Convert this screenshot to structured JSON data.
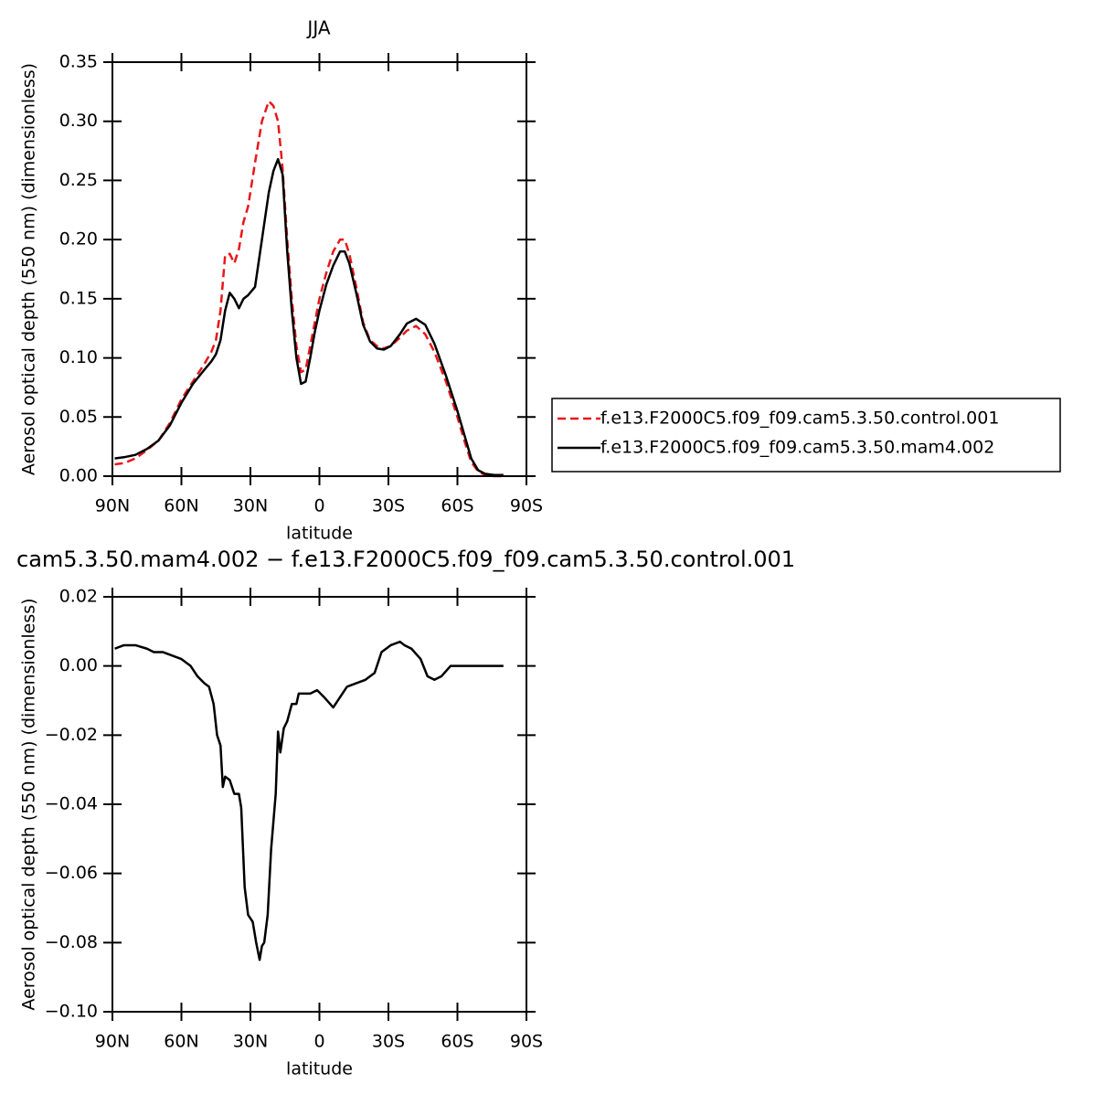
{
  "chart_data": [
    {
      "type": "line",
      "title": "JJA",
      "x_label": "latitude",
      "y_label": "Aerosol optical depth (550 nm) (dimensionless)",
      "x": [
        89,
        85,
        80,
        75,
        70,
        65,
        60,
        55,
        50,
        47,
        45,
        43,
        41,
        39,
        37,
        35,
        33,
        31,
        28,
        25,
        22,
        20,
        18,
        16,
        14,
        12,
        10,
        8,
        6,
        4,
        2,
        0,
        -3,
        -6,
        -9,
        -11,
        -13,
        -16,
        -19,
        -22,
        -25,
        -28,
        -31,
        -35,
        -38,
        -42,
        -46,
        -50,
        -55,
        -60,
        -63,
        -66,
        -69,
        -72,
        -76,
        -80
      ],
      "series": [
        {
          "name": "f.e13.F2000C5.f09_f09.cam5.3.50.control.001",
          "color": "#e8171b",
          "line_style": "dashed",
          "values": [
            0.01,
            0.011,
            0.015,
            0.022,
            0.03,
            0.045,
            0.065,
            0.08,
            0.095,
            0.105,
            0.115,
            0.14,
            0.187,
            0.188,
            0.18,
            0.192,
            0.215,
            0.228,
            0.265,
            0.3,
            0.317,
            0.313,
            0.3,
            0.26,
            0.2,
            0.15,
            0.11,
            0.088,
            0.09,
            0.11,
            0.13,
            0.15,
            0.172,
            0.19,
            0.2,
            0.2,
            0.188,
            0.16,
            0.13,
            0.115,
            0.11,
            0.108,
            0.11,
            0.117,
            0.123,
            0.127,
            0.12,
            0.105,
            0.08,
            0.05,
            0.03,
            0.012,
            0.004,
            0.001,
            0.0,
            0.0
          ]
        },
        {
          "name": "f.e13.F2000C5.f09_f09.cam5.3.50.mam4.002",
          "color": "#000000",
          "line_style": "solid",
          "values": [
            0.015,
            0.016,
            0.018,
            0.023,
            0.03,
            0.043,
            0.062,
            0.078,
            0.09,
            0.097,
            0.103,
            0.115,
            0.14,
            0.155,
            0.15,
            0.142,
            0.15,
            0.153,
            0.16,
            0.2,
            0.24,
            0.258,
            0.268,
            0.255,
            0.19,
            0.14,
            0.1,
            0.078,
            0.08,
            0.1,
            0.122,
            0.14,
            0.162,
            0.178,
            0.19,
            0.19,
            0.18,
            0.155,
            0.128,
            0.114,
            0.108,
            0.107,
            0.11,
            0.12,
            0.129,
            0.133,
            0.128,
            0.112,
            0.085,
            0.055,
            0.035,
            0.015,
            0.005,
            0.002,
            0.001,
            0.001
          ]
        }
      ],
      "xlim": [
        90,
        -90
      ],
      "xticks": [
        {
          "value": 90,
          "label": "90N"
        },
        {
          "value": 60,
          "label": "60N"
        },
        {
          "value": 30,
          "label": "30N"
        },
        0,
        {
          "value": -30,
          "label": "30S"
        },
        {
          "value": -60,
          "label": "60S"
        },
        {
          "value": -90,
          "label": "90S"
        }
      ],
      "ylim": [
        0,
        0.35
      ],
      "yticks": [
        {
          "value": 0,
          "label": "0.00"
        },
        0.05,
        {
          "value": 0.1,
          "label": "0.10"
        },
        0.15,
        {
          "value": 0.2,
          "label": "0.20"
        },
        0.25,
        {
          "value": 0.3,
          "label": "0.30"
        },
        0.35
      ],
      "legend": "right"
    },
    {
      "type": "line",
      "title": "cam5.3.50.mam4.002 − f.e13.F2000C5.f09_f09.cam5.3.50.control.001",
      "x_label": "latitude",
      "y_label": "Aerosol optical depth (550 nm) (dimensionless)",
      "x": [
        89,
        85,
        80,
        75,
        72,
        68,
        64,
        60,
        56,
        53,
        50,
        48,
        46,
        44.5,
        43,
        42,
        41,
        39,
        37,
        35,
        34,
        32.5,
        31,
        29,
        27.5,
        26,
        25,
        24,
        22.5,
        21,
        19,
        18,
        17,
        15.5,
        14,
        12,
        10,
        9,
        7,
        4,
        1,
        -2,
        -6,
        -9,
        -12,
        -16,
        -20,
        -24,
        -27,
        -31,
        -35,
        -37,
        -40,
        -44,
        -47,
        -50,
        -53,
        -57,
        -60,
        -65,
        -70,
        -75,
        -80
      ],
      "series": [
        {
          "color": "#000000",
          "line_style": "solid",
          "values": [
            0.005,
            0.006,
            0.006,
            0.005,
            0.004,
            0.004,
            0.003,
            0.002,
            0.0,
            -0.003,
            -0.005,
            -0.006,
            -0.011,
            -0.02,
            -0.023,
            -0.035,
            -0.032,
            -0.033,
            -0.037,
            -0.037,
            -0.041,
            -0.064,
            -0.072,
            -0.074,
            -0.08,
            -0.085,
            -0.081,
            -0.08,
            -0.072,
            -0.053,
            -0.037,
            -0.019,
            -0.025,
            -0.018,
            -0.016,
            -0.011,
            -0.011,
            -0.008,
            -0.008,
            -0.008,
            -0.007,
            -0.009,
            -0.012,
            -0.009,
            -0.006,
            -0.005,
            -0.004,
            -0.002,
            0.004,
            0.006,
            0.007,
            0.006,
            0.005,
            0.002,
            -0.003,
            -0.004,
            -0.003,
            0.0,
            0.0,
            0.0,
            0.0,
            0.0,
            0.0
          ]
        }
      ],
      "xlim": [
        90,
        -90
      ],
      "xticks": [
        {
          "value": 90,
          "label": "90N"
        },
        {
          "value": 60,
          "label": "60N"
        },
        {
          "value": 30,
          "label": "30N"
        },
        0,
        {
          "value": -30,
          "label": "30S"
        },
        {
          "value": -60,
          "label": "60S"
        },
        {
          "value": -90,
          "label": "90S"
        }
      ],
      "ylim": [
        -0.1,
        0.02
      ],
      "yticks": [
        {
          "value": 0.02,
          "label": "0.02"
        },
        {
          "value": 0,
          "label": "0.00"
        },
        {
          "value": -0.02,
          "label": "−0.02"
        },
        {
          "value": -0.04,
          "label": "−0.04"
        },
        {
          "value": -0.06,
          "label": "−0.06"
        },
        {
          "value": -0.08,
          "label": "−0.08"
        },
        {
          "value": -0.1,
          "label": "−0.10"
        }
      ]
    }
  ]
}
